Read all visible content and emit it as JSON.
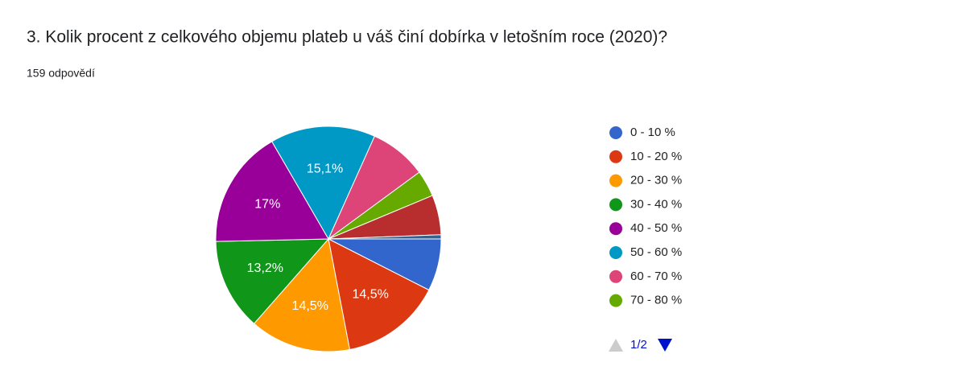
{
  "chart_data": {
    "type": "pie",
    "title": "3. Kolik procent z celkového objemu plateb u váš činí dobírka v letošním roce (2020)?",
    "subtitle": "159 odpovědí",
    "categories": [
      "0 - 10 %",
      "10 - 20 %",
      "20 - 30 %",
      "30 - 40 %",
      "40 - 50 %",
      "50 - 60 %",
      "60 - 70 %",
      "70 - 80 %",
      null,
      null
    ],
    "values": [
      7.5,
      14.5,
      14.5,
      13.2,
      17,
      15.1,
      8.2,
      3.8,
      5.7,
      0.6
    ],
    "value_labels": [
      null,
      "14,5%",
      "14,5%",
      "13,2%",
      "17%",
      "15,1%",
      null,
      null,
      null,
      null
    ],
    "colors": [
      "#3366cc",
      "#dc3912",
      "#ff9900",
      "#109618",
      "#990099",
      "#0099c6",
      "#dd4477",
      "#66aa00",
      "#b82e2e",
      "#316395"
    ],
    "start_angle": 90,
    "legend": "right",
    "legend_page": "1/2"
  }
}
